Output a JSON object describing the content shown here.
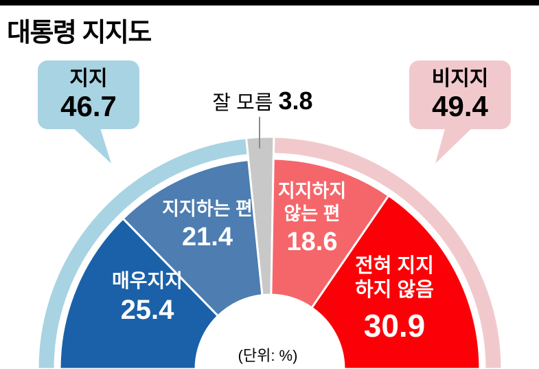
{
  "title": "대통령 지지도",
  "unit_label": "(단위: %)",
  "callouts": {
    "support": {
      "label": "지지",
      "value": "46.7"
    },
    "oppose": {
      "label": "비지지",
      "value": "49.4"
    },
    "dontknow": {
      "label": "잘 모름",
      "value": "3.8"
    }
  },
  "chart_data": {
    "type": "pie",
    "variant": "semicircle-donut",
    "orientation": "semicircle-180",
    "title": "대통령 지지도",
    "unit": "%",
    "legend": false,
    "segments": [
      {
        "label": "매우지지",
        "value": 25.4,
        "color": "#1a61a9",
        "group": "support"
      },
      {
        "label": "지지하는 편",
        "value": 21.4,
        "color": "#4d7db1",
        "group": "support"
      },
      {
        "label": "잘 모름",
        "value": 3.8,
        "color": "#c8c8c8",
        "group": "dontknow"
      },
      {
        "label": "지지하지 않는 편",
        "value": 18.6,
        "color": "#f5666b",
        "group": "oppose",
        "label_lines": [
          "지지하지",
          "않는 편"
        ]
      },
      {
        "label": "전혀 지지 하지 않음",
        "value": 30.9,
        "color": "#fb0107",
        "group": "oppose",
        "label_lines": [
          "전혀 지지",
          "하지 않음"
        ]
      }
    ],
    "groups": [
      {
        "key": "support",
        "name": "지지",
        "value": 46.7,
        "ring_color": "#a8d3e2"
      },
      {
        "key": "dontknow",
        "name": "잘 모름",
        "value": 3.8,
        "ring_color": null
      },
      {
        "key": "oppose",
        "name": "비지지",
        "value": 49.4,
        "ring_color": "#f1c9cc"
      }
    ]
  }
}
